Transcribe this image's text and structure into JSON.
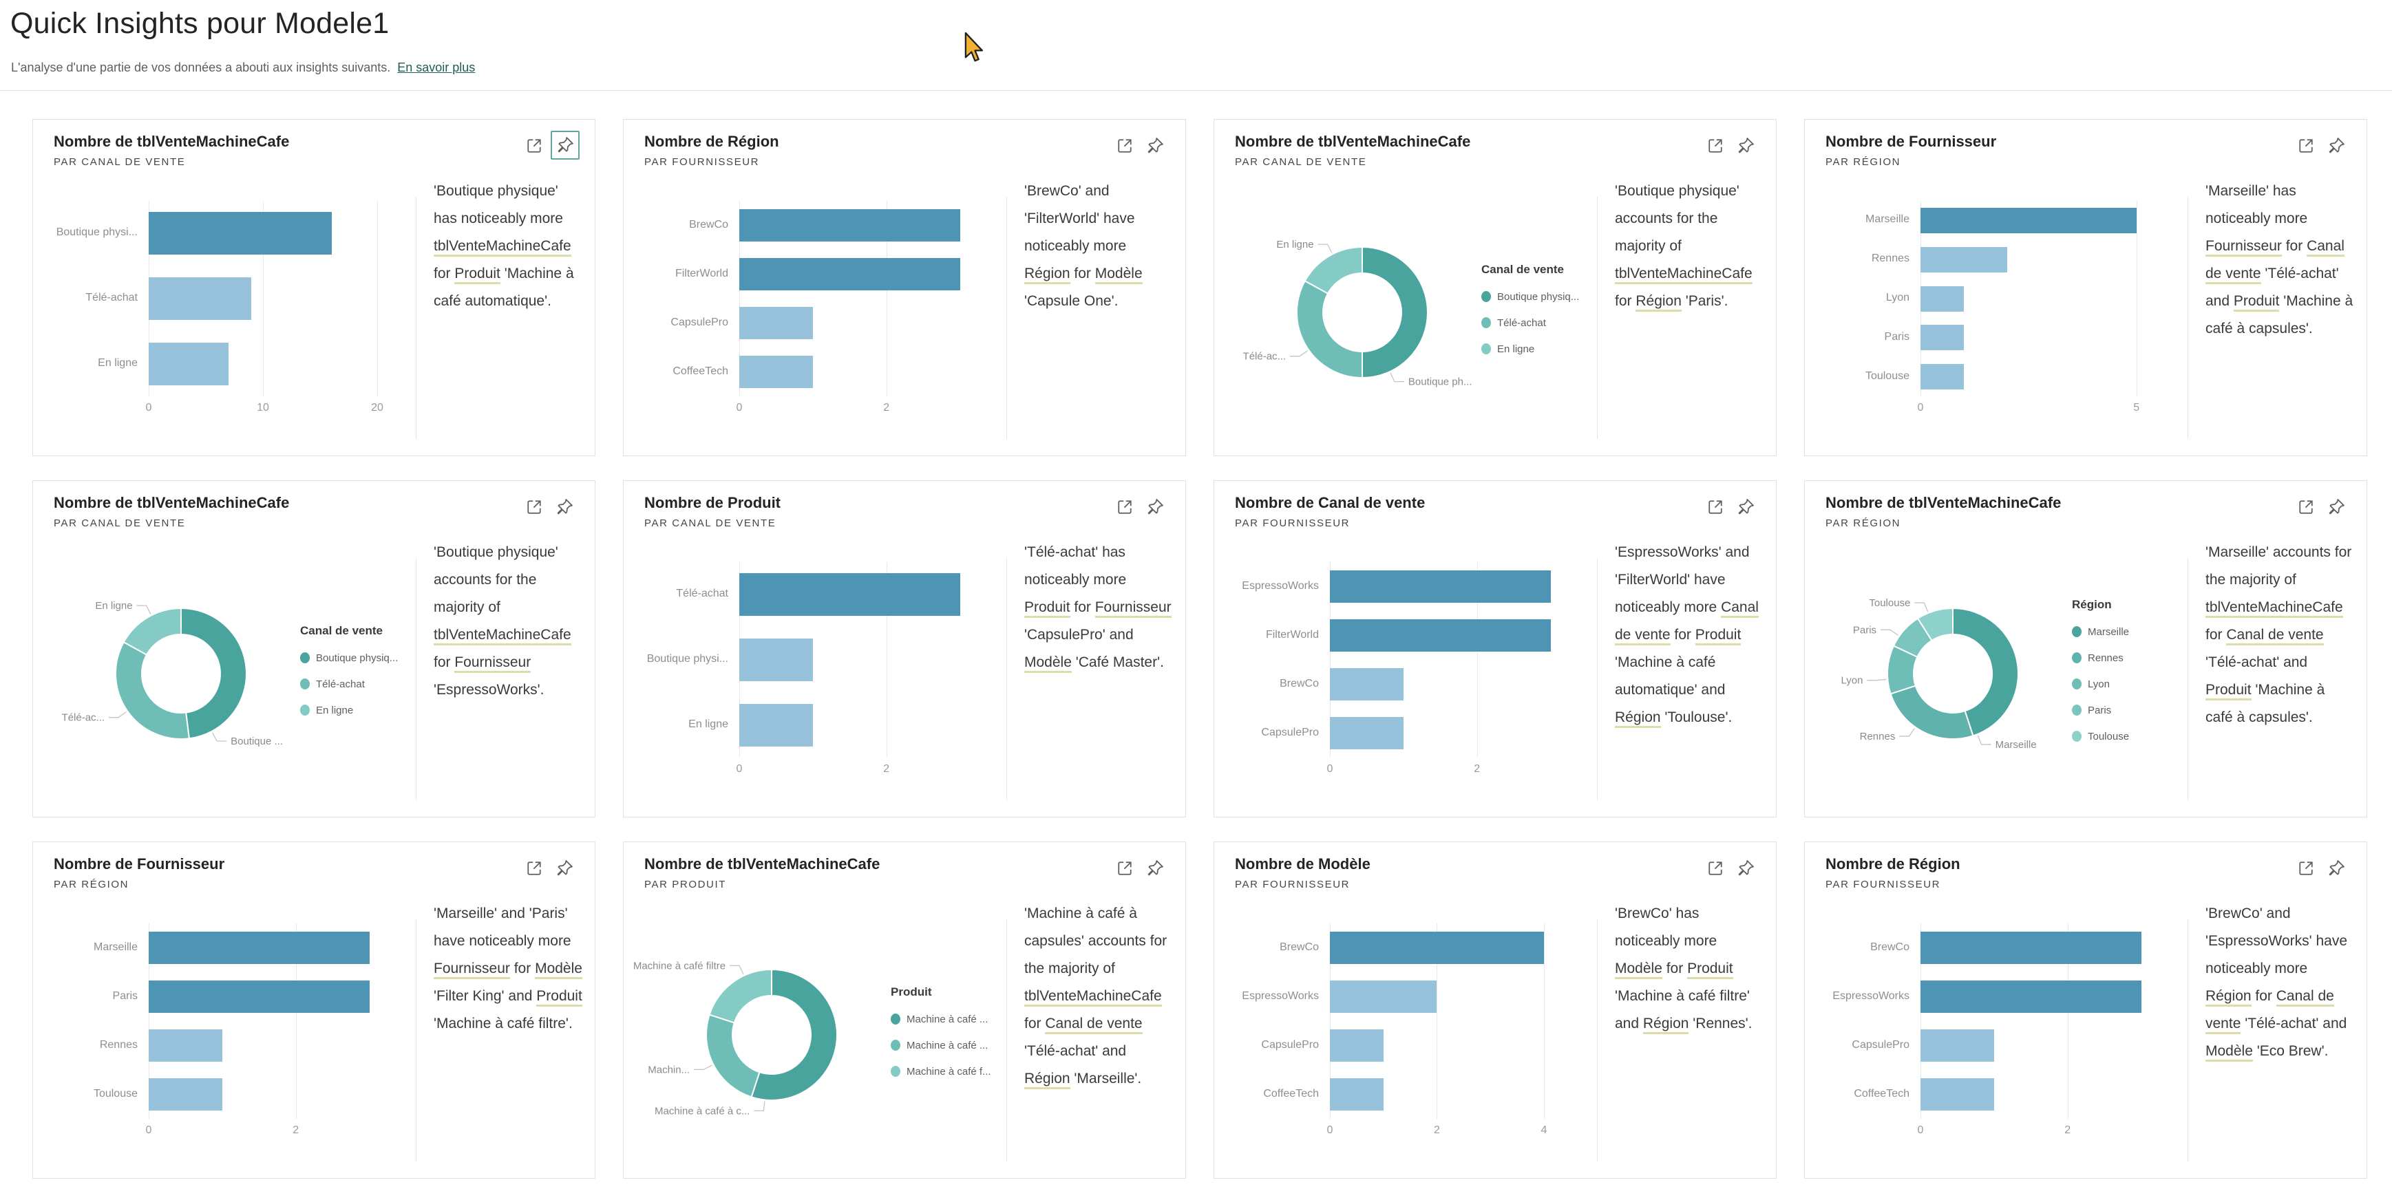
{
  "page": {
    "title": "Quick Insights pour Modele1",
    "subtitle": "L'analyse d'une partie de vos données a abouti aux insights suivants.",
    "learn_more_label": "En savoir plus"
  },
  "colors": {
    "bar_dark": "#4e95b5",
    "bar_light": "#96c3db",
    "donut_3": [
      "#4aa49e",
      "#6ebeb7",
      "#83cbc4"
    ],
    "donut_5": [
      "#4aa49e",
      "#5fb3ac",
      "#6ebeb7",
      "#7bc5be",
      "#8dd1ca"
    ],
    "underline": "#dedda9",
    "pin_active_border": "#5ea79e",
    "cursor_fill": "#f2b230"
  },
  "icons": [
    "focus-mode-icon",
    "pin-icon",
    "cursor-arrow-icon"
  ],
  "chart_data": [
    {
      "type": "bar",
      "title": "Nombre de tblVenteMachineCafe",
      "subtitle": "PAR CANAL DE VENTE",
      "categories": [
        "Boutique physi...",
        "Télé-achat",
        "En ligne"
      ],
      "values": [
        16,
        9,
        7
      ],
      "emphasis": [
        true,
        false,
        false
      ],
      "ticks": [
        0,
        10,
        20
      ],
      "axis_max": 20.6,
      "pin_highlighted": true,
      "insight_segments": [
        {
          "text": "'Boutique physique' has noticeably more ",
          "underline": false
        },
        {
          "text": "tblVenteMachineCafe",
          "underline": true
        },
        {
          "text": " for ",
          "underline": false
        },
        {
          "text": "Produit",
          "underline": true
        },
        {
          "text": " 'Machine à café automatique'.",
          "underline": false
        }
      ]
    },
    {
      "type": "bar",
      "title": "Nombre de Région",
      "subtitle": "PAR FOURNISSEUR",
      "categories": [
        "BrewCo",
        "FilterWorld",
        "CapsulePro",
        "CoffeeTech"
      ],
      "values": [
        3,
        3,
        1,
        1
      ],
      "emphasis": [
        true,
        true,
        false,
        false
      ],
      "ticks": [
        0,
        2
      ],
      "axis_max": 3.2,
      "pin_highlighted": false,
      "insight_segments": [
        {
          "text": "'BrewCo' and 'FilterWorld' have noticeably more ",
          "underline": false
        },
        {
          "text": "Région",
          "underline": true
        },
        {
          "text": " for ",
          "underline": false
        },
        {
          "text": "Modèle",
          "underline": true
        },
        {
          "text": " 'Capsule One'.",
          "underline": false
        }
      ]
    },
    {
      "type": "donut",
      "title": "Nombre de tblVenteMachineCafe",
      "subtitle": "PAR CANAL DE VENTE",
      "legend_title": "Canal de vente",
      "legend_items": [
        "Boutique physiq...",
        "Télé-achat",
        "En ligne"
      ],
      "segments": [
        {
          "callout": "Boutique ph...",
          "pct": 50,
          "label_angle": 155
        },
        {
          "callout": "Télé-ac...",
          "pct": 33,
          "label_angle": 235
        },
        {
          "callout": "En ligne",
          "pct": 17,
          "label_angle": 333
        }
      ],
      "pin_highlighted": false,
      "insight_segments": [
        {
          "text": "'Boutique physique' accounts for the majority of ",
          "underline": false
        },
        {
          "text": "tblVenteMachineCafe",
          "underline": true
        },
        {
          "text": " for ",
          "underline": false
        },
        {
          "text": "Région",
          "underline": true
        },
        {
          "text": " 'Paris'.",
          "underline": false
        }
      ]
    },
    {
      "type": "bar",
      "title": "Nombre de Fournisseur",
      "subtitle": "PAR RÉGION",
      "categories": [
        "Marseille",
        "Rennes",
        "Lyon",
        "Paris",
        "Toulouse"
      ],
      "values": [
        5,
        2,
        1,
        1,
        1
      ],
      "emphasis": [
        true,
        false,
        false,
        false,
        false
      ],
      "ticks": [
        0,
        5
      ],
      "axis_max": 5.45,
      "pin_highlighted": false,
      "insight_segments": [
        {
          "text": "'Marseille' has noticeably more ",
          "underline": false
        },
        {
          "text": "Fournisseur",
          "underline": true
        },
        {
          "text": " for ",
          "underline": false
        },
        {
          "text": "Canal de vente",
          "underline": true
        },
        {
          "text": " 'Télé-achat' and ",
          "underline": false
        },
        {
          "text": "Produit",
          "underline": true
        },
        {
          "text": " 'Machine à café à capsules'.",
          "underline": false
        }
      ]
    },
    {
      "type": "donut",
      "title": "Nombre de tblVenteMachineCafe",
      "subtitle": "PAR CANAL DE VENTE",
      "legend_title": "Canal de vente",
      "legend_items": [
        "Boutique physiq...",
        "Télé-achat",
        "En ligne"
      ],
      "segments": [
        {
          "callout": "Boutique ...",
          "pct": 48,
          "label_angle": 152
        },
        {
          "callout": "Télé-ac...",
          "pct": 35,
          "label_angle": 235
        },
        {
          "callout": "En ligne",
          "pct": 17,
          "label_angle": 333
        }
      ],
      "pin_highlighted": false,
      "insight_segments": [
        {
          "text": "'Boutique physique' accounts for the majority of ",
          "underline": false
        },
        {
          "text": "tblVenteMachineCafe",
          "underline": true
        },
        {
          "text": " for ",
          "underline": false
        },
        {
          "text": "Fournisseur",
          "underline": true
        },
        {
          "text": " 'EspressoWorks'.",
          "underline": false
        }
      ]
    },
    {
      "type": "bar",
      "title": "Nombre de Produit",
      "subtitle": "PAR CANAL DE VENTE",
      "categories": [
        "Télé-achat",
        "Boutique physi...",
        "En ligne"
      ],
      "values": [
        3,
        1,
        1
      ],
      "emphasis": [
        true,
        false,
        false
      ],
      "ticks": [
        0,
        2
      ],
      "axis_max": 3.2,
      "pin_highlighted": false,
      "insight_segments": [
        {
          "text": "'Télé-achat' has noticeably more ",
          "underline": false
        },
        {
          "text": "Produit",
          "underline": true
        },
        {
          "text": " for ",
          "underline": false
        },
        {
          "text": "Fournisseur",
          "underline": true
        },
        {
          "text": " 'CapsulePro' and ",
          "underline": false
        },
        {
          "text": "Modèle",
          "underline": true
        },
        {
          "text": " 'Café Master'.",
          "underline": false
        }
      ]
    },
    {
      "type": "bar",
      "title": "Nombre de Canal de vente",
      "subtitle": "PAR FOURNISSEUR",
      "categories": [
        "EspressoWorks",
        "FilterWorld",
        "BrewCo",
        "CapsulePro"
      ],
      "values": [
        3,
        3,
        1,
        1
      ],
      "emphasis": [
        true,
        true,
        false,
        false
      ],
      "ticks": [
        0,
        2
      ],
      "axis_max": 3.2,
      "pin_highlighted": false,
      "insight_segments": [
        {
          "text": "'EspressoWorks' and 'FilterWorld' have noticeably more ",
          "underline": false
        },
        {
          "text": "Canal de vente",
          "underline": true
        },
        {
          "text": " for ",
          "underline": false
        },
        {
          "text": "Produit",
          "underline": true
        },
        {
          "text": " 'Machine à café automatique' and ",
          "underline": false
        },
        {
          "text": "Région",
          "underline": true
        },
        {
          "text": " 'Toulouse'.",
          "underline": false
        }
      ]
    },
    {
      "type": "donut",
      "title": "Nombre de tblVenteMachineCafe",
      "subtitle": "PAR RÉGION",
      "legend_title": "Région",
      "legend_items": [
        "Marseille",
        "Rennes",
        "Lyon",
        "Paris",
        "Toulouse"
      ],
      "segments": [
        {
          "callout": "Marseille",
          "pct": 45,
          "label_angle": 158
        },
        {
          "callout": "Rennes",
          "pct": 25,
          "label_angle": 215
        },
        {
          "callout": "Lyon",
          "pct": 12,
          "label_angle": 265
        },
        {
          "callout": "Paris",
          "pct": 9,
          "label_angle": 305
        },
        {
          "callout": "Toulouse",
          "pct": 9,
          "label_angle": 338
        }
      ],
      "pin_highlighted": false,
      "insight_segments": [
        {
          "text": "'Marseille' accounts for the majority of ",
          "underline": false
        },
        {
          "text": "tblVenteMachineCafe",
          "underline": true
        },
        {
          "text": " for ",
          "underline": false
        },
        {
          "text": "Canal de vente",
          "underline": true
        },
        {
          "text": " 'Télé-achat' and ",
          "underline": false
        },
        {
          "text": "Produit",
          "underline": true
        },
        {
          "text": " 'Machine à café à capsules'.",
          "underline": false
        }
      ]
    },
    {
      "type": "bar",
      "title": "Nombre de Fournisseur",
      "subtitle": "PAR RÉGION",
      "categories": [
        "Marseille",
        "Paris",
        "Rennes",
        "Toulouse"
      ],
      "values": [
        3,
        3,
        1,
        1
      ],
      "emphasis": [
        true,
        true,
        false,
        false
      ],
      "ticks": [
        0,
        2
      ],
      "axis_max": 3.2,
      "pin_highlighted": false,
      "insight_segments": [
        {
          "text": "'Marseille' and 'Paris' have noticeably more ",
          "underline": false
        },
        {
          "text": "Fournisseur",
          "underline": true
        },
        {
          "text": " for ",
          "underline": false
        },
        {
          "text": "Modèle",
          "underline": true
        },
        {
          "text": " 'Filter King' and ",
          "underline": false
        },
        {
          "text": "Produit",
          "underline": true
        },
        {
          "text": " 'Machine à café filtre'.",
          "underline": false
        }
      ]
    },
    {
      "type": "donut",
      "title": "Nombre de tblVenteMachineCafe",
      "subtitle": "PAR PRODUIT",
      "legend_title": "Produit",
      "legend_items": [
        "Machine à café ...",
        "Machine à café ...",
        "Machine à café f..."
      ],
      "segments": [
        {
          "callout": "Machine à café à c...",
          "pct": 55,
          "label_angle": 186
        },
        {
          "callout": "Machin...",
          "pct": 25,
          "label_angle": 243
        },
        {
          "callout": "Machine à café filtre",
          "pct": 20,
          "label_angle": 335
        }
      ],
      "pin_highlighted": false,
      "insight_segments": [
        {
          "text": "'Machine à café à capsules' accounts for the majority of ",
          "underline": false
        },
        {
          "text": "tblVenteMachineCafe",
          "underline": true
        },
        {
          "text": " for ",
          "underline": false
        },
        {
          "text": "Canal de vente",
          "underline": true
        },
        {
          "text": " 'Télé-achat' and ",
          "underline": false
        },
        {
          "text": "Région",
          "underline": true
        },
        {
          "text": " 'Marseille'.",
          "underline": false
        }
      ]
    },
    {
      "type": "bar",
      "title": "Nombre de Modèle",
      "subtitle": "PAR FOURNISSEUR",
      "categories": [
        "BrewCo",
        "EspressoWorks",
        "CapsulePro",
        "CoffeeTech"
      ],
      "values": [
        4,
        2,
        1,
        1
      ],
      "emphasis": [
        true,
        false,
        false,
        false
      ],
      "ticks": [
        0,
        2,
        4
      ],
      "axis_max": 4.4,
      "pin_highlighted": false,
      "insight_segments": [
        {
          "text": "'BrewCo' has noticeably more ",
          "underline": false
        },
        {
          "text": "Modèle",
          "underline": true
        },
        {
          "text": " for ",
          "underline": false
        },
        {
          "text": "Produit",
          "underline": true
        },
        {
          "text": " 'Machine à café filtre' and ",
          "underline": false
        },
        {
          "text": "Région",
          "underline": true
        },
        {
          "text": " 'Rennes'.",
          "underline": false
        }
      ]
    },
    {
      "type": "bar",
      "title": "Nombre de Région",
      "subtitle": "PAR FOURNISSEUR",
      "categories": [
        "BrewCo",
        "EspressoWorks",
        "CapsulePro",
        "CoffeeTech"
      ],
      "values": [
        3,
        3,
        1,
        1
      ],
      "emphasis": [
        true,
        true,
        false,
        false
      ],
      "ticks": [
        0,
        2
      ],
      "axis_max": 3.2,
      "pin_highlighted": false,
      "insight_segments": [
        {
          "text": "'BrewCo' and 'EspressoWorks' have noticeably more ",
          "underline": false
        },
        {
          "text": "Région",
          "underline": true
        },
        {
          "text": " for ",
          "underline": false
        },
        {
          "text": "Canal de vente",
          "underline": true
        },
        {
          "text": " 'Télé-achat' and ",
          "underline": false
        },
        {
          "text": "Modèle",
          "underline": true
        },
        {
          "text": " 'Eco Brew'.",
          "underline": false
        }
      ]
    }
  ]
}
